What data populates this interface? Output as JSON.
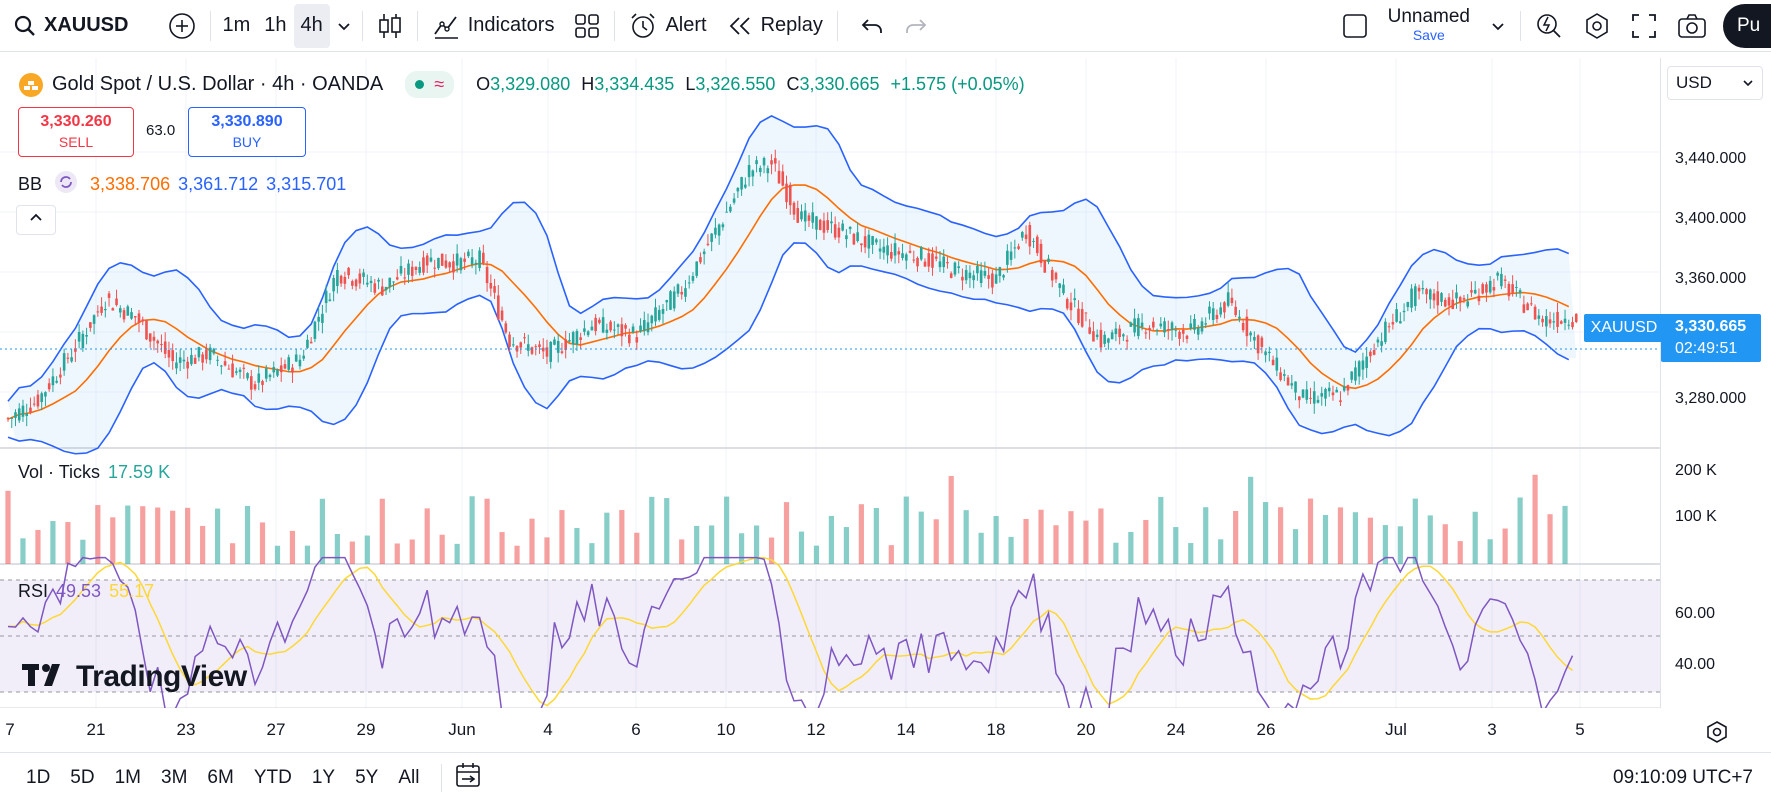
{
  "toolbar": {
    "symbol": "XAUUSD",
    "intervals": [
      "1m",
      "1h",
      "4h"
    ],
    "active_interval": "4h",
    "indicators_label": "Indicators",
    "alert_label": "Alert",
    "replay_label": "Replay",
    "layout_name": "Unnamed",
    "layout_status": "Save",
    "publish_label": "Pu"
  },
  "legend": {
    "title": "Gold Spot / U.S. Dollar · 4h · OANDA",
    "open_label": "O",
    "open": "3,329.080",
    "high_label": "H",
    "high": "3,334.435",
    "low_label": "L",
    "low": "3,326.550",
    "close_label": "C",
    "close": "3,330.665",
    "change": "+1.575 (+0.05%)"
  },
  "trade": {
    "sell_price": "3,330.260",
    "sell_label": "SELL",
    "spread": "63.0",
    "buy_price": "3,330.890",
    "buy_label": "BUY"
  },
  "bb": {
    "label": "BB",
    "basis": "3,338.706",
    "upper": "3,361.712",
    "lower": "3,315.701"
  },
  "volume": {
    "label": "Vol · Ticks",
    "value": "17.59 K"
  },
  "rsi": {
    "label": "RSI",
    "value": "49.53",
    "ma": "55.17"
  },
  "currency": "USD",
  "price_axis": [
    "3,440.000",
    "3,400.000",
    "3,360.000",
    "3,280.000"
  ],
  "last_price": {
    "symbol": "XAUUSD",
    "price": "3,330.665",
    "countdown": "02:49:51"
  },
  "vol_axis": [
    "200 K",
    "100 K"
  ],
  "rsi_axis": [
    "60.00",
    "40.00"
  ],
  "dates": [
    "7",
    "21",
    "23",
    "27",
    "29",
    "Jun",
    "4",
    "6",
    "10",
    "12",
    "14",
    "18",
    "20",
    "24",
    "26",
    "Jul",
    "3",
    "5"
  ],
  "brand": "TradingView",
  "ranges": [
    "1D",
    "5D",
    "1M",
    "3M",
    "6M",
    "YTD",
    "1Y",
    "5Y",
    "All"
  ],
  "clock": "09:10:09 UTC+7",
  "colors": {
    "up": "#26a69a",
    "down": "#ef5350",
    "bb_band": "#2962ff",
    "bb_basis": "#ff6d00",
    "rsi": "#7e57c2",
    "rsi_ma": "#fdd835",
    "accent": "#2962ff"
  }
}
